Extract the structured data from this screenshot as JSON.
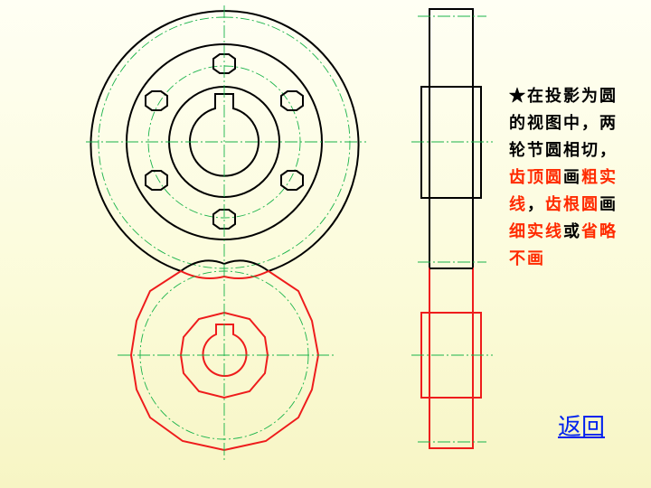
{
  "note": {
    "segments": [
      {
        "text": "★在投影为圆的视图中，两轮节圆相切，",
        "color": "black"
      },
      {
        "text": "齿顶圆",
        "color": "red"
      },
      {
        "text": "画",
        "color": "black"
      },
      {
        "text": "粗实线",
        "color": "red"
      },
      {
        "text": "，",
        "color": "black"
      },
      {
        "text": "齿根圆",
        "color": "red"
      },
      {
        "text": "画",
        "color": "black"
      },
      {
        "text": "细实线",
        "color": "red"
      },
      {
        "text": "或",
        "color": "black"
      },
      {
        "text": "省略不画",
        "color": "red"
      }
    ]
  },
  "link": {
    "back_label": "返回"
  },
  "colors": {
    "outline": "#000000",
    "driven_gear": "#ee1c1c",
    "centerline": "#19b34a",
    "link": "#0022ee"
  }
}
